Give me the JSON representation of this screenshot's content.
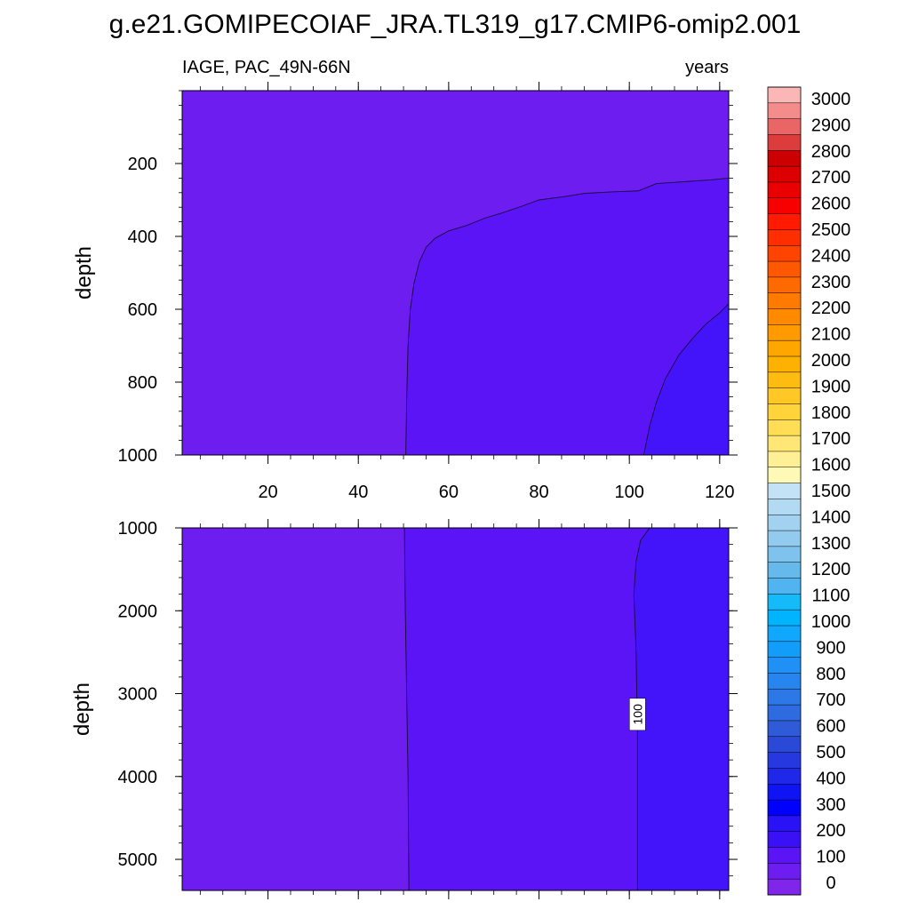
{
  "title": "g.e21.GOMIPECOIAF_JRA.TL319_g17.CMIP6-omip2.001",
  "chart_data": {
    "type": "heatmap",
    "subtitle_left": "IAGE, PAC_49N-66N",
    "subtitle_right": "years",
    "x_ticks": [
      20,
      40,
      60,
      80,
      100,
      120
    ],
    "xlim": [
      1,
      122
    ],
    "panels": [
      {
        "name": "upper-panel",
        "ylabel": "depth",
        "y_ticks": [
          200,
          400,
          600,
          800,
          1000
        ],
        "ylim": [
          0,
          1000
        ],
        "regions": [
          {
            "level": "0-100",
            "color": "#6d1df0",
            "description_boundary": "left of the 50-year contour"
          },
          {
            "level": "50-100",
            "color": "#5a14f5"
          },
          {
            "level": "100-150",
            "color": "#4314f9"
          }
        ],
        "contour_50": [
          [
            122,
            240
          ],
          [
            118,
            245
          ],
          [
            112,
            250
          ],
          [
            106,
            255
          ],
          [
            102,
            275
          ],
          [
            96,
            278
          ],
          [
            90,
            282
          ],
          [
            86,
            290
          ],
          [
            80,
            300
          ],
          [
            76,
            318
          ],
          [
            72,
            335
          ],
          [
            68,
            350
          ],
          [
            64,
            370
          ],
          [
            60,
            385
          ],
          [
            57,
            405
          ],
          [
            55,
            430
          ],
          [
            53.5,
            470
          ],
          [
            52.3,
            530
          ],
          [
            51.5,
            600
          ],
          [
            51,
            700
          ],
          [
            50.7,
            850
          ],
          [
            50.5,
            1000
          ]
        ],
        "contour_100": [
          [
            122,
            585
          ],
          [
            120,
            610
          ],
          [
            117,
            640
          ],
          [
            114,
            680
          ],
          [
            111,
            725
          ],
          [
            108,
            790
          ],
          [
            106,
            855
          ],
          [
            104.5,
            920
          ],
          [
            103.2,
            1000
          ]
        ]
      },
      {
        "name": "lower-panel",
        "ylabel": "depth",
        "y_ticks": [
          1000,
          2000,
          3000,
          4000,
          5000
        ],
        "ylim": [
          1000,
          5375
        ],
        "contour_50": [
          [
            50.2,
            1000
          ],
          [
            50.4,
            2000
          ],
          [
            50.7,
            3000
          ],
          [
            51,
            4000
          ],
          [
            51.2,
            5375
          ]
        ],
        "contour_100": [
          [
            104.5,
            1000
          ],
          [
            102.5,
            1150
          ],
          [
            101.5,
            1400
          ],
          [
            101,
            1800
          ],
          [
            101.5,
            2500
          ],
          [
            101.8,
            3500
          ],
          [
            101.8,
            5375
          ]
        ],
        "contour_label": "100",
        "contour_label_y": 3250
      }
    ],
    "colorbar": {
      "labels": [
        "3000",
        "2900",
        "2800",
        "2700",
        "2600",
        "2500",
        "2400",
        "2300",
        "2200",
        "2100",
        "2000",
        "1900",
        "1800",
        "1700",
        "1600",
        "1500",
        "1400",
        "1300",
        "1200",
        "1100",
        "1000",
        "900",
        "800",
        "700",
        "600",
        "500",
        "400",
        "300",
        "200",
        "100",
        "0"
      ],
      "colors": [
        "#fbb6b6",
        "#f58c8c",
        "#ea6666",
        "#dd3c3c",
        "#cc0000",
        "#dc0000",
        "#eb0000",
        "#f80000",
        "#ff1a00",
        "#ff2e00",
        "#ff4400",
        "#ff5800",
        "#ff6a00",
        "#ff7a00",
        "#ff8a00",
        "#ff9a00",
        "#ffa600",
        "#ffb100",
        "#ffbc10",
        "#ffc825",
        "#ffd33a",
        "#ffdd55",
        "#ffe775",
        "#fff095",
        "#fff9b6",
        "#c4e2f6",
        "#b2daf3",
        "#a2d2f0",
        "#93cbee",
        "#7ec3ed",
        "#66baeb",
        "#4fb4f0",
        "#14bbf8",
        "#00b4ff",
        "#10a8ff",
        "#139dfa",
        "#1f90f5",
        "#2685ee",
        "#2c78e6",
        "#2f6be0",
        "#2f5ad8",
        "#2b49d7",
        "#2638df",
        "#1f28e8",
        "#0f14f5",
        "#0000ff",
        "#2a12f7",
        "#3a10f4",
        "#5a14f5",
        "#6d1df0",
        "#7f26ea"
      ]
    }
  }
}
